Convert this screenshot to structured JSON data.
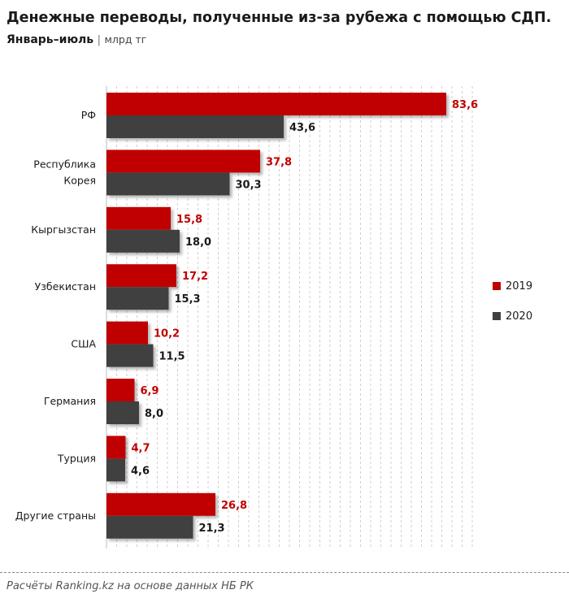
{
  "title": "Денежные переводы, полученные из-за рубежа с помощью СДП.",
  "subtitle": {
    "main": "Январь–июль",
    "separator": "|",
    "unit": "млрд тг"
  },
  "source": "Расчёты Ranking.kz на основе данных НБ РК",
  "colors": {
    "2019": "#c00000",
    "2020": "#404040",
    "grid": "#cfcfcf"
  },
  "chart_data": {
    "type": "bar",
    "orientation": "horizontal",
    "categories": [
      "РФ",
      "Республика\nКорея",
      "Кыргызстан",
      "Узбекистан",
      "США",
      "Германия",
      "Турция",
      "Другие страны"
    ],
    "series": [
      {
        "name": "2019",
        "values": [
          83.6,
          37.8,
          15.8,
          17.2,
          10.2,
          6.9,
          4.7,
          26.8
        ],
        "labels": [
          "83,6",
          "37,8",
          "15,8",
          "17,2",
          "10,2",
          "6,9",
          "4,7",
          "26,8"
        ]
      },
      {
        "name": "2020",
        "values": [
          43.6,
          30.3,
          18.0,
          15.3,
          11.5,
          8.0,
          4.6,
          21.3
        ],
        "labels": [
          "43,6",
          "30,3",
          "18,0",
          "15,3",
          "11,5",
          "8,0",
          "4,6",
          "21,3"
        ]
      }
    ],
    "xlim": [
      0,
      90
    ],
    "grid": true,
    "legend": "right"
  }
}
